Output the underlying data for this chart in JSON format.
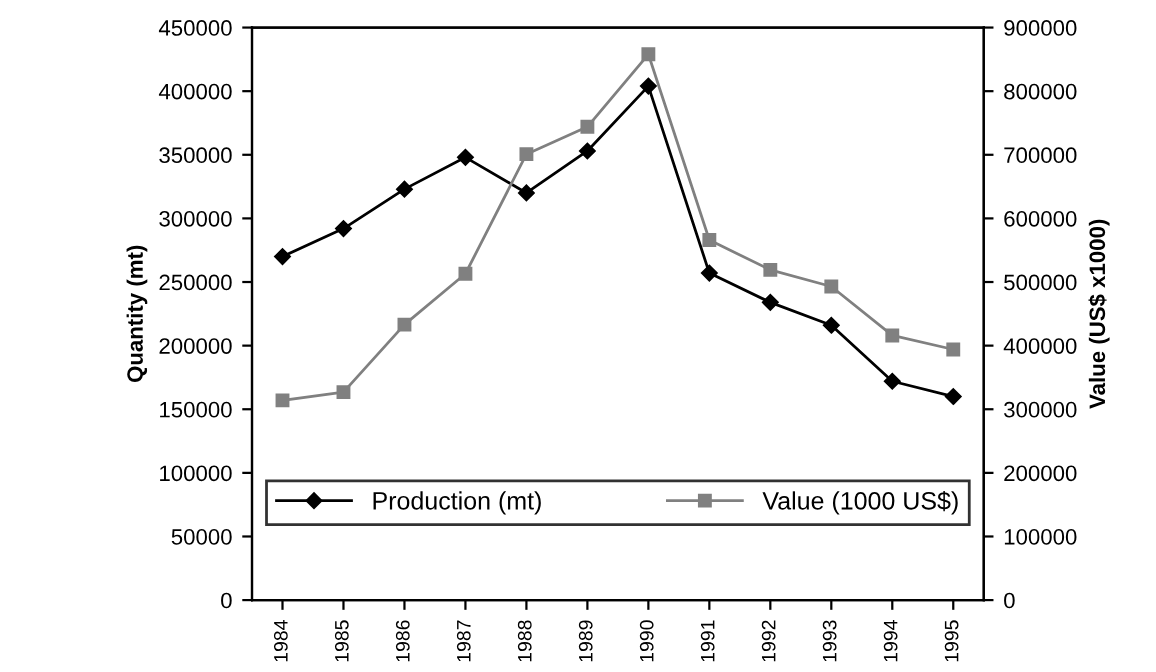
{
  "chart_data": {
    "type": "line",
    "ylabel": "Quantity (mt)",
    "y2label": "Value (US$ x1000)",
    "categories": [
      "1984",
      "1985",
      "1986",
      "1987",
      "1988",
      "1989",
      "1990",
      "1991",
      "1992",
      "1993",
      "1994",
      "1995"
    ],
    "series": [
      {
        "name": "Production (mt)",
        "color": "#000000",
        "marker": "diamond",
        "values": [
          270000,
          292000,
          323000,
          348000,
          320000,
          353000,
          404000,
          257000,
          234000,
          216000,
          172000,
          160000
        ]
      },
      {
        "name": "Value (1000 US$)",
        "color": "#808080",
        "marker": "square",
        "axis": "y2",
        "values": [
          314000,
          327000,
          433000,
          513000,
          701000,
          744000,
          858000,
          566000,
          519000,
          493000,
          416000,
          394000
        ]
      }
    ],
    "ylim": [
      0,
      450000
    ],
    "yticks": [
      0,
      50000,
      100000,
      150000,
      200000,
      250000,
      300000,
      350000,
      400000,
      450000
    ],
    "y2lim": [
      0,
      900000
    ],
    "y2ticks": [
      0,
      100000,
      200000,
      300000,
      400000,
      500000,
      600000,
      700000,
      800000,
      900000
    ],
    "legend": "bottom",
    "grid": false
  }
}
